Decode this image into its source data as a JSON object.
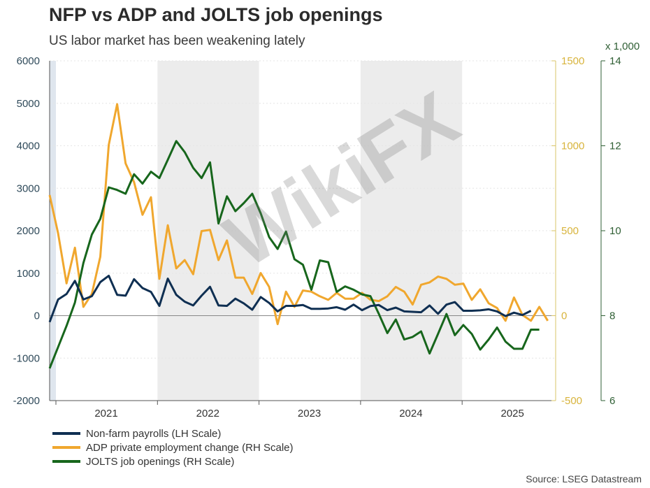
{
  "chart_data": {
    "type": "line",
    "title": "NFP vs ADP and JOLTS job openings",
    "subtitle": "US labor market has been weakening lately",
    "x_start": "2020-12",
    "x_frequency": "monthly",
    "x_ticks": [
      "2021",
      "2022",
      "2023",
      "2024",
      "2025"
    ],
    "shaded_years": [
      "2020",
      "2022",
      "2024"
    ],
    "axes": {
      "left": {
        "label": "LH Scale",
        "ylim": [
          -2000,
          6000
        ],
        "ticks": [
          "6000",
          "5000",
          "4000",
          "3000",
          "2000",
          "1000",
          "0",
          "-1000",
          "-2000"
        ]
      },
      "right1": {
        "label": "RH Scale",
        "ylim": [
          -500,
          1500
        ],
        "ticks": [
          "1500",
          "1000",
          "500",
          "0",
          "-500"
        ]
      },
      "right2": {
        "label": "RH Scale",
        "unit": "x 1,000",
        "ylim": [
          6,
          14
        ],
        "ticks": [
          "14",
          "12",
          "10",
          "8",
          "6"
        ]
      }
    },
    "series": [
      {
        "name": "Non-farm payrolls (LH Scale)",
        "axis": "left",
        "color": "#0f2f52",
        "values": [
          -150,
          380,
          510,
          820,
          380,
          460,
          790,
          940,
          490,
          470,
          860,
          650,
          560,
          230,
          870,
          490,
          330,
          240,
          470,
          680,
          240,
          230,
          400,
          290,
          140,
          440,
          300,
          100,
          230,
          230,
          250,
          160,
          160,
          170,
          200,
          140,
          260,
          130,
          225,
          250,
          130,
          190,
          100,
          90,
          80,
          240,
          45,
          260,
          320,
          115,
          115,
          125,
          150,
          100,
          -10,
          70,
          15,
          115
        ]
      },
      {
        "name": "ADP private employment change (RH Scale)",
        "axis": "right1",
        "color": "#f0a72e",
        "values": [
          710,
          485,
          190,
          400,
          52,
          128,
          347,
          1005,
          1245,
          896,
          786,
          594,
          697,
          217,
          532,
          278,
          327,
          244,
          498,
          505,
          327,
          443,
          224,
          224,
          128,
          251,
          169,
          -50,
          141,
          52,
          148,
          141,
          114,
          93,
          134,
          100,
          100,
          134,
          93,
          86,
          114,
          169,
          141,
          66,
          182,
          196,
          230,
          217,
          182,
          189,
          93,
          155,
          73,
          45,
          -30,
          107,
          4,
          -30,
          52,
          -30
        ]
      },
      {
        "name": "JOLTS job openings (RH Scale)",
        "axis": "right2",
        "color": "#17661c",
        "values": [
          6.76,
          7.26,
          7.76,
          8.31,
          9.24,
          9.91,
          10.28,
          11.02,
          10.96,
          10.87,
          11.33,
          11.11,
          11.39,
          11.24,
          11.67,
          12.11,
          11.85,
          11.48,
          11.24,
          11.61,
          10.17,
          10.81,
          10.46,
          10.65,
          10.87,
          10.41,
          9.85,
          9.57,
          9.98,
          9.33,
          9.2,
          8.61,
          9.3,
          9.26,
          8.56,
          8.69,
          8.61,
          8.5,
          8.46,
          8.04,
          7.59,
          7.91,
          7.44,
          7.5,
          7.63,
          7.11,
          7.57,
          8.04,
          7.54,
          7.78,
          7.57,
          7.2,
          7.44,
          7.72,
          7.39,
          7.22,
          7.22,
          7.67,
          7.67
        ]
      }
    ],
    "legend_position": "bottom-left",
    "source": "Source: LSEG Datastream",
    "watermark": "WikiFX"
  }
}
